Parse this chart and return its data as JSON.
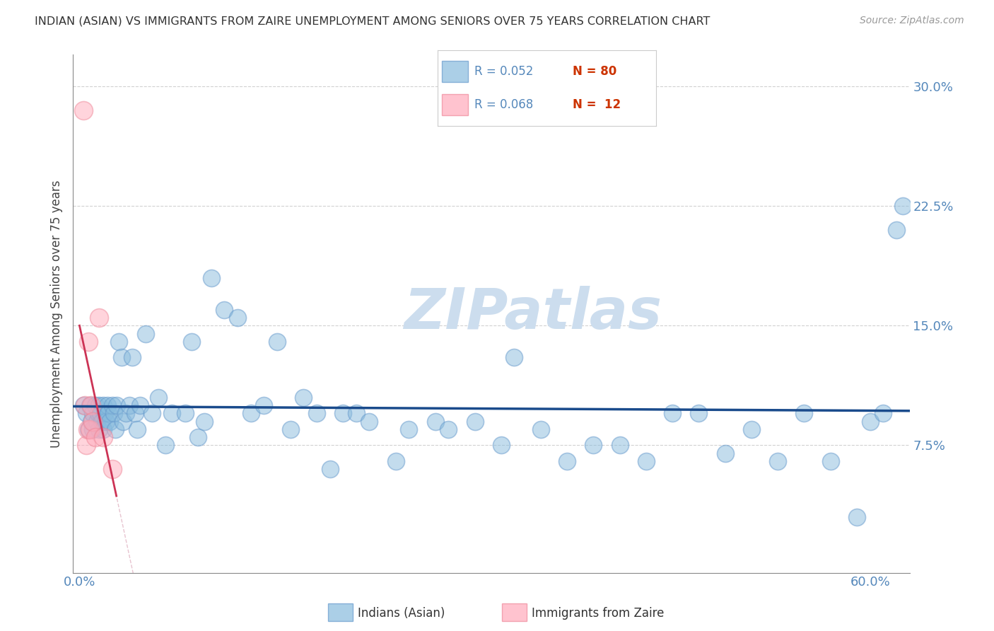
{
  "title": "INDIAN (ASIAN) VS IMMIGRANTS FROM ZAIRE UNEMPLOYMENT AMONG SENIORS OVER 75 YEARS CORRELATION CHART",
  "source": "Source: ZipAtlas.com",
  "ylabel": "Unemployment Among Seniors over 75 years",
  "x_tick_positions": [
    0.0,
    0.6
  ],
  "x_tick_labels": [
    "0.0%",
    "60.0%"
  ],
  "y_ticks": [
    0.075,
    0.15,
    0.225,
    0.3
  ],
  "y_tick_labels": [
    "7.5%",
    "15.0%",
    "22.5%",
    "30.0%"
  ],
  "xlim": [
    -0.005,
    0.63
  ],
  "ylim": [
    -0.005,
    0.32
  ],
  "legend_entries": [
    {
      "label_r": "R = 0.052",
      "label_n": "N = 80",
      "color": "#6699cc"
    },
    {
      "label_r": "R = 0.068",
      "label_n": "N =  12",
      "color": "#ee8899"
    }
  ],
  "indian_x": [
    0.003,
    0.005,
    0.007,
    0.008,
    0.009,
    0.01,
    0.01,
    0.012,
    0.013,
    0.014,
    0.015,
    0.015,
    0.016,
    0.017,
    0.018,
    0.018,
    0.019,
    0.02,
    0.021,
    0.022,
    0.023,
    0.025,
    0.026,
    0.027,
    0.028,
    0.03,
    0.032,
    0.033,
    0.035,
    0.038,
    0.04,
    0.042,
    0.044,
    0.046,
    0.05,
    0.055,
    0.06,
    0.065,
    0.07,
    0.08,
    0.085,
    0.09,
    0.095,
    0.1,
    0.11,
    0.12,
    0.13,
    0.14,
    0.15,
    0.16,
    0.17,
    0.18,
    0.19,
    0.2,
    0.21,
    0.22,
    0.24,
    0.25,
    0.27,
    0.28,
    0.3,
    0.32,
    0.33,
    0.35,
    0.37,
    0.39,
    0.41,
    0.43,
    0.45,
    0.47,
    0.49,
    0.51,
    0.53,
    0.55,
    0.57,
    0.59,
    0.6,
    0.61,
    0.62,
    0.625
  ],
  "indian_y": [
    0.1,
    0.095,
    0.085,
    0.1,
    0.09,
    0.095,
    0.085,
    0.1,
    0.09,
    0.095,
    0.085,
    0.1,
    0.095,
    0.09,
    0.1,
    0.085,
    0.095,
    0.09,
    0.1,
    0.095,
    0.09,
    0.1,
    0.095,
    0.085,
    0.1,
    0.14,
    0.13,
    0.09,
    0.095,
    0.1,
    0.13,
    0.095,
    0.085,
    0.1,
    0.145,
    0.095,
    0.105,
    0.075,
    0.095,
    0.095,
    0.14,
    0.08,
    0.09,
    0.18,
    0.16,
    0.155,
    0.095,
    0.1,
    0.14,
    0.085,
    0.105,
    0.095,
    0.06,
    0.095,
    0.095,
    0.09,
    0.065,
    0.085,
    0.09,
    0.085,
    0.09,
    0.075,
    0.13,
    0.085,
    0.065,
    0.075,
    0.075,
    0.065,
    0.095,
    0.095,
    0.07,
    0.085,
    0.065,
    0.095,
    0.065,
    0.03,
    0.09,
    0.095,
    0.21,
    0.225
  ],
  "zaire_x": [
    0.003,
    0.004,
    0.005,
    0.006,
    0.007,
    0.008,
    0.009,
    0.01,
    0.012,
    0.015,
    0.018,
    0.025
  ],
  "zaire_y": [
    0.285,
    0.1,
    0.075,
    0.085,
    0.14,
    0.085,
    0.1,
    0.09,
    0.08,
    0.155,
    0.08,
    0.06
  ],
  "blue_line_color": "#1a4b8c",
  "pink_line_color": "#cc3355",
  "dot_color_blue": "#88bbdd",
  "dot_color_pink": "#ffaabb",
  "dot_edge_blue": "#6699cc",
  "dot_edge_pink": "#ee8899",
  "watermark": "ZIPatlas",
  "grid_color": "#cccccc",
  "title_color": "#333333",
  "tick_color": "#5588bb",
  "diag_line_color": "#ddaabb"
}
